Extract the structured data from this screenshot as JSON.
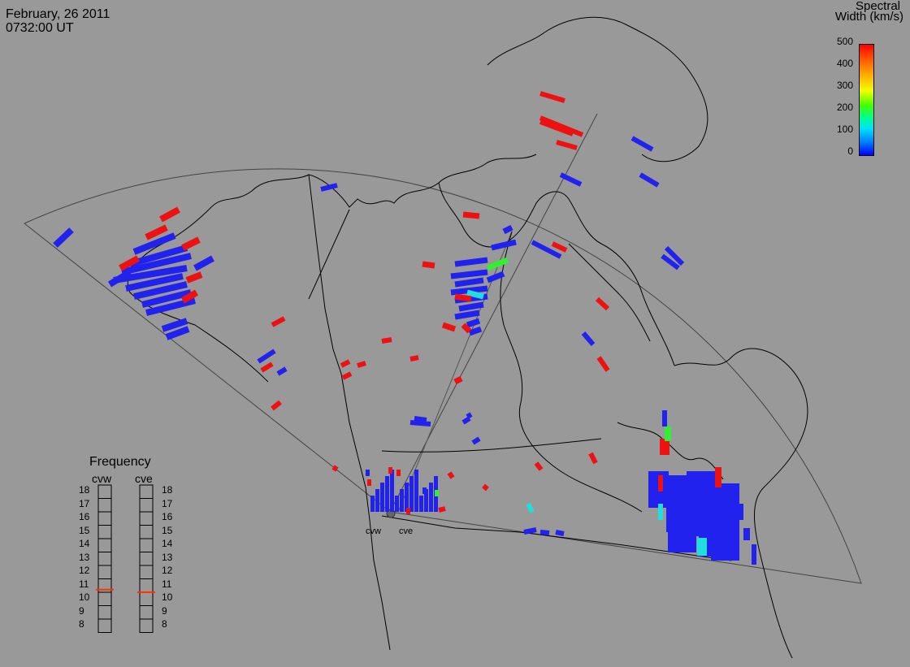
{
  "header": {
    "date": "February, 26 2011",
    "time": "0732:00 UT"
  },
  "colorbar": {
    "title_line1": "Spectral",
    "title_line2": "Width (km/s)",
    "ticks": [
      "500",
      "400",
      "300",
      "200",
      "100",
      "0"
    ]
  },
  "frequency": {
    "title": "Frequency",
    "radars": [
      "cvw",
      "cve"
    ],
    "scale": [
      "18",
      "17",
      "16",
      "15",
      "14",
      "13",
      "12",
      "11",
      "10",
      "9",
      "8"
    ],
    "cvw_value": 10.7,
    "cve_value": 10.5
  },
  "sites": {
    "west": "cvw",
    "east": "cve"
  },
  "colors": {
    "background": "#999999",
    "low_width": "#2222ee",
    "high_width": "#ee1111",
    "mid_width_green": "#33ee33",
    "mid_width_cyan": "#22dddd",
    "freq_marker": "#ff3300"
  }
}
